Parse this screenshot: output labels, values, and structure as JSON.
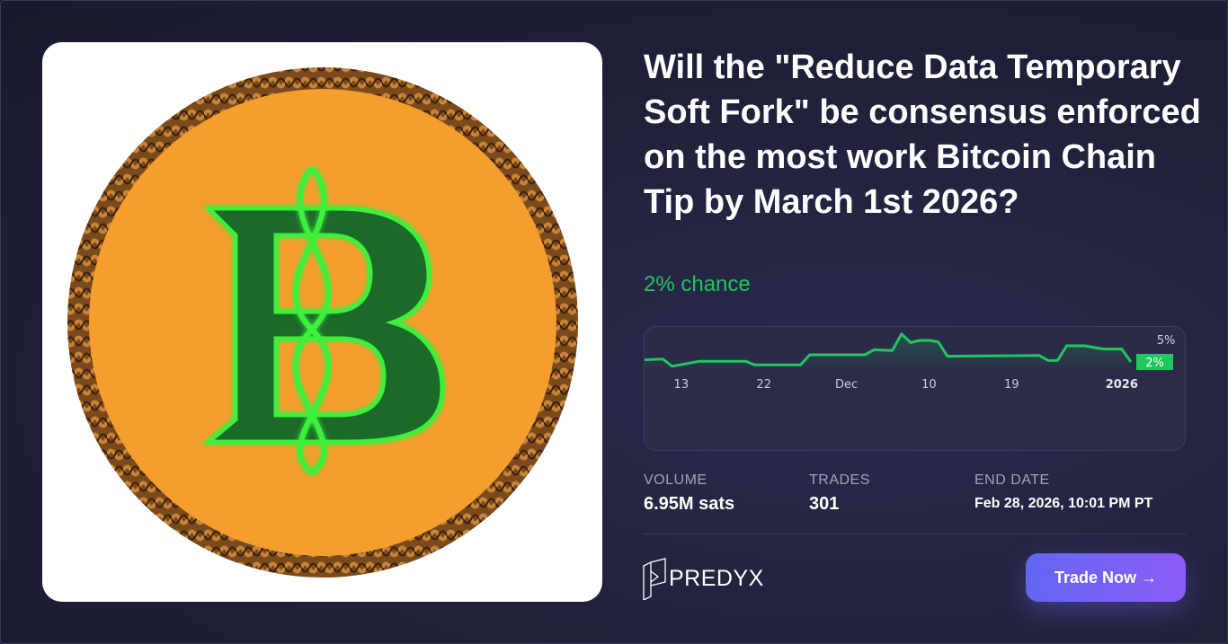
{
  "market": {
    "title": "Will the \"Reduce Data Temporary Soft Fork\" be consensus enforced on the most work Bitcoin Chain Tip by March 1st 2026?",
    "chance_text": "2% chance",
    "image_icon": "celtic-knot-b-coin-icon"
  },
  "chart_data": {
    "type": "line",
    "x": [
      "2025-11-09",
      "2025-11-11",
      "2025-11-12",
      "2025-11-15",
      "2025-11-20",
      "2025-11-21",
      "2025-11-26",
      "2025-11-27",
      "2025-12-03",
      "2025-12-04",
      "2025-12-06",
      "2025-12-07",
      "2025-12-08",
      "2025-12-09",
      "2025-12-10",
      "2025-12-11",
      "2025-12-12",
      "2025-12-22",
      "2025-12-23",
      "2025-12-24",
      "2025-12-25",
      "2025-12-27",
      "2025-12-29",
      "2025-12-31",
      "2026-01-01"
    ],
    "values": [
      2.3,
      2.4,
      1.4,
      2.1,
      2.1,
      1.6,
      1.6,
      3.0,
      3.0,
      3.7,
      3.6,
      5.9,
      4.7,
      5.0,
      5.0,
      4.8,
      2.8,
      2.9,
      2.2,
      2.2,
      4.25,
      4.25,
      3.8,
      3.8,
      2.0
    ],
    "y_unit": "%",
    "y_label_top": "5%",
    "current_label": "2%",
    "x_ticks": [
      {
        "date": "2025-11-13",
        "label": "13"
      },
      {
        "date": "2025-11-22",
        "label": "22"
      },
      {
        "date": "2025-12-01",
        "label": "Dec"
      },
      {
        "date": "2025-12-10",
        "label": "10"
      },
      {
        "date": "2025-12-19",
        "label": "19"
      },
      {
        "date": "2025-12-31",
        "label": "2026",
        "bold": true
      }
    ],
    "grid": false,
    "line_color": "#22c55e"
  },
  "stats": {
    "volume": {
      "label": "VOLUME",
      "value": "6.95M sats"
    },
    "trades": {
      "label": "TRADES",
      "value": "301"
    },
    "end_date": {
      "label": "END DATE",
      "value": "Feb 28, 2026, 10:01 PM PT"
    }
  },
  "brand": {
    "name": "PREDYX"
  },
  "cta": {
    "label": "Trade Now →"
  },
  "colors": {
    "accent_green": "#22c55e",
    "button_start": "#6366f1",
    "button_end": "#8b5cf6"
  }
}
